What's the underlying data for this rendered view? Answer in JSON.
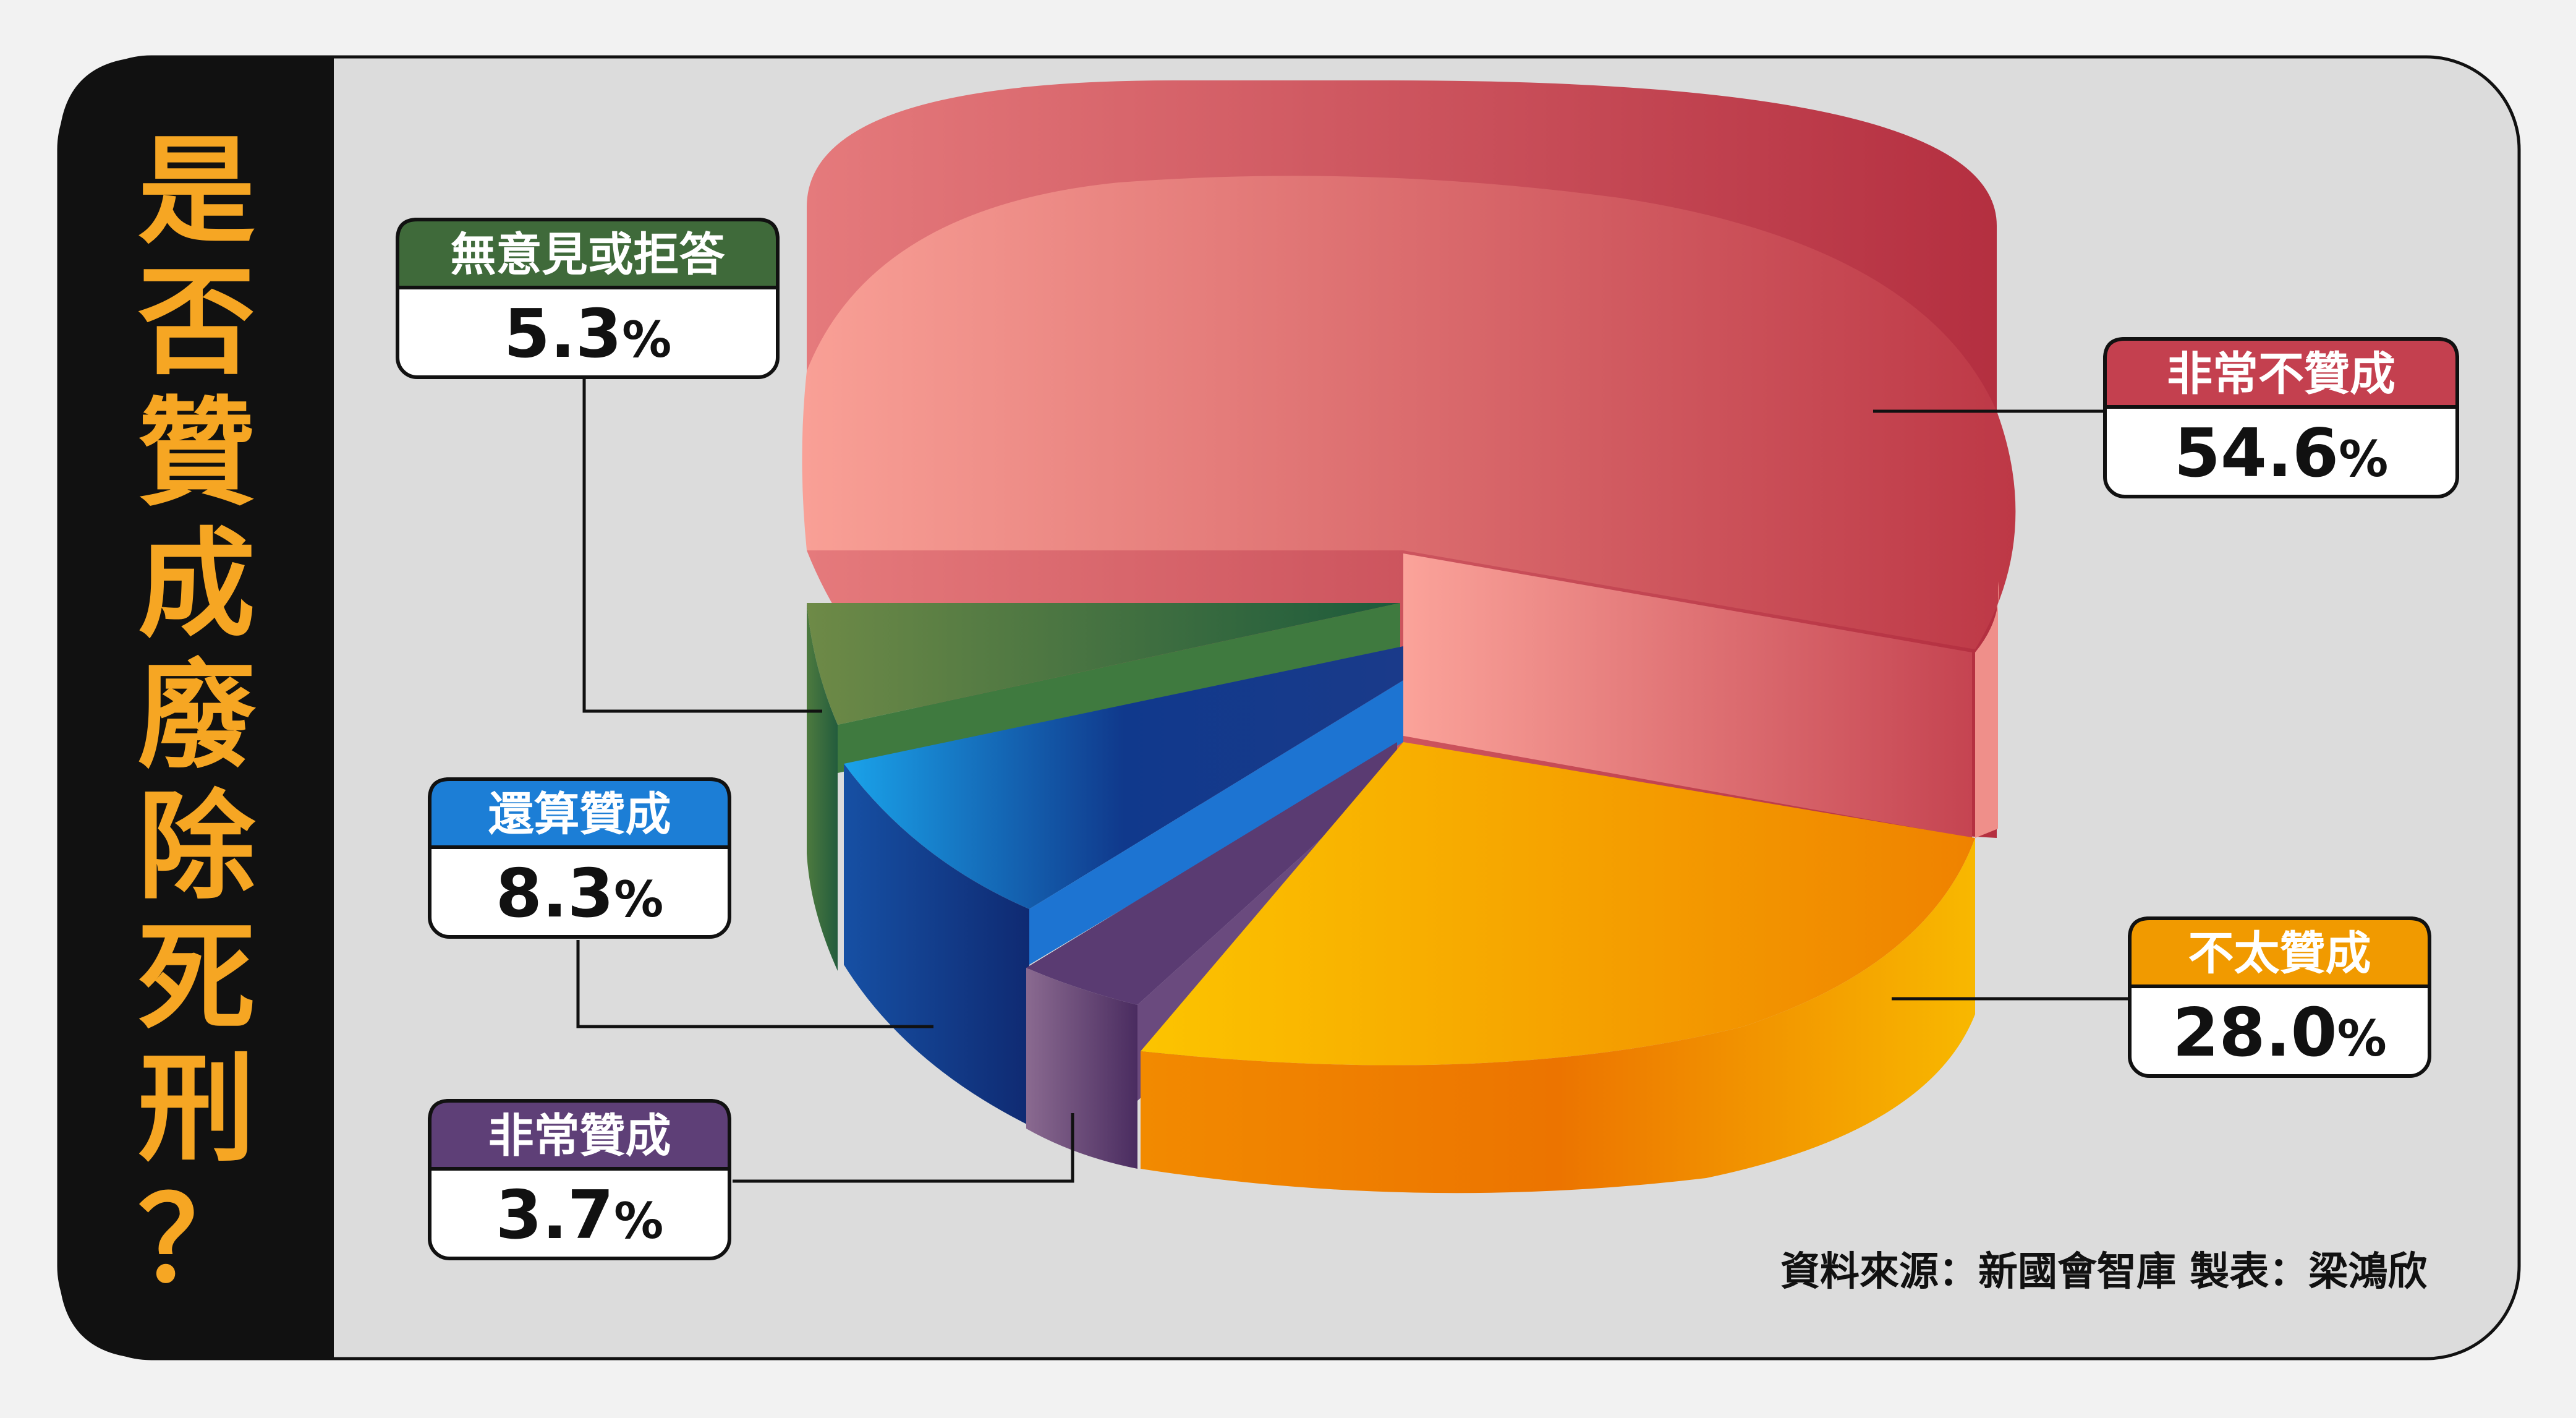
{
  "title": "是否贊成廢除死刑？",
  "source_note": "資料來源：新國會智庫 製表：梁鴻欣",
  "colors": {
    "title_text": "#f6a623",
    "title_panel": "#111111",
    "card": "#dcdcdc"
  },
  "chart_data": {
    "type": "pie",
    "style": "3d-exploded",
    "unit": "%",
    "slices": [
      {
        "label": "非常不贊成",
        "value": 54.6,
        "display": "54.6",
        "color_light": "#f59c92",
        "color_dark": "#b93845"
      },
      {
        "label": "不太贊成",
        "value": 28.0,
        "display": "28.0",
        "color_light": "#fcc400",
        "color_dark": "#ee7d00"
      },
      {
        "label": "非常贊成",
        "value": 3.7,
        "display": "3.7",
        "color_light": "#9a6f9c",
        "color_dark": "#4a2b60"
      },
      {
        "label": "還算贊成",
        "value": 8.3,
        "display": "8.3",
        "color_light": "#1aa0e8",
        "color_dark": "#0f2a78"
      },
      {
        "label": "無意見或拒答",
        "value": 5.3,
        "display": "5.3",
        "color_light": "#6f8b46",
        "color_dark": "#1d5a3a"
      }
    ]
  }
}
